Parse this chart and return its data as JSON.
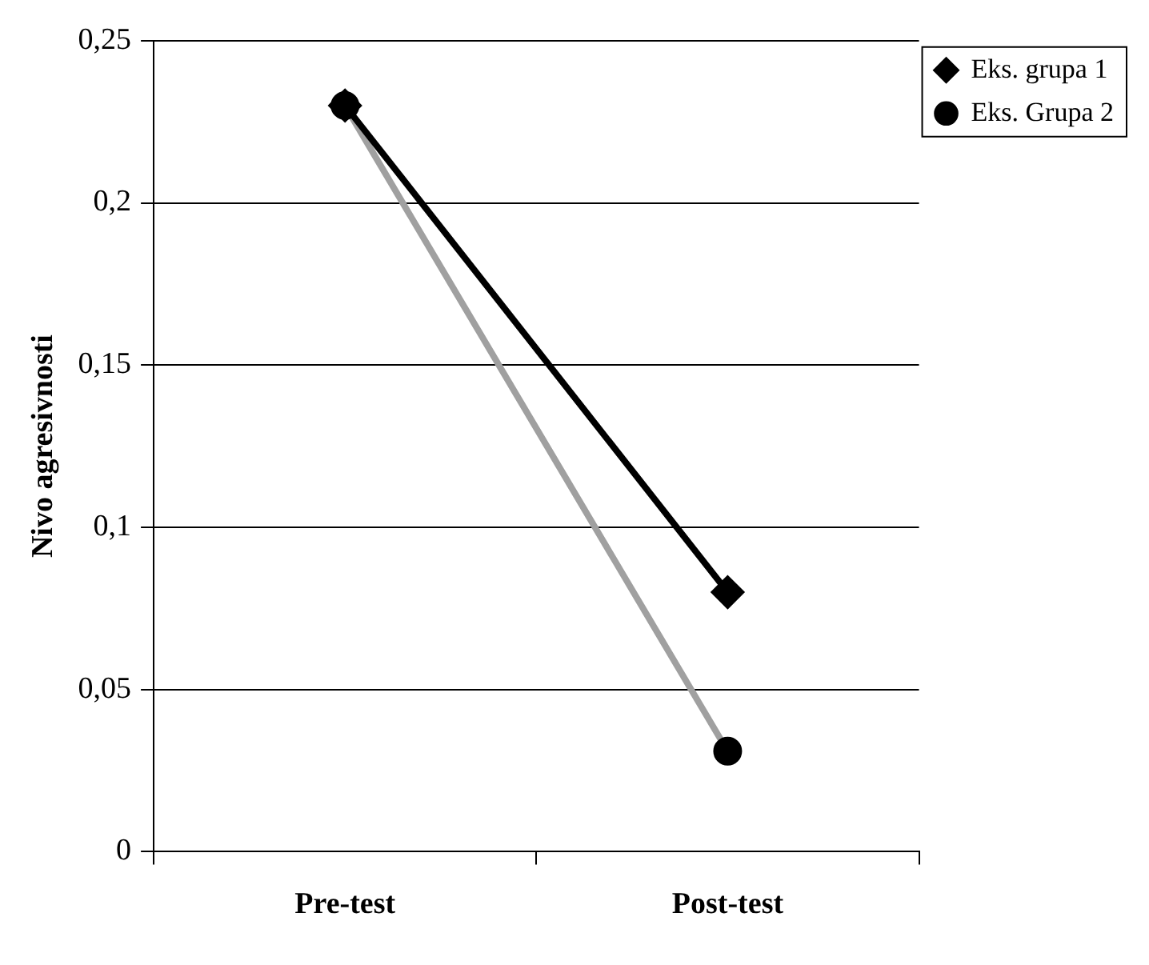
{
  "chart_data": {
    "type": "line",
    "ylabel": "Nivo agresivnosti",
    "categories": [
      "Pre-test",
      "Post-test"
    ],
    "series": [
      {
        "name": "Eks. grupa 1",
        "color": "#000000",
        "values": [
          0.23,
          0.08
        ],
        "marker": "diamond"
      },
      {
        "name": "Eks. Grupa 2",
        "color": "#a0a0a0",
        "values": [
          0.23,
          0.031
        ],
        "marker": "circle"
      }
    ],
    "ylim": [
      0,
      0.25
    ],
    "yticks": [
      {
        "value": 0,
        "label": "0"
      },
      {
        "value": 0.05,
        "label": "0,05"
      },
      {
        "value": 0.1,
        "label": "0,1"
      },
      {
        "value": 0.15,
        "label": "0,15"
      },
      {
        "value": 0.2,
        "label": "0,2"
      },
      {
        "value": 0.25,
        "label": "0,25"
      }
    ],
    "grid": "y",
    "legend": "top right",
    "line_style": "solid"
  }
}
